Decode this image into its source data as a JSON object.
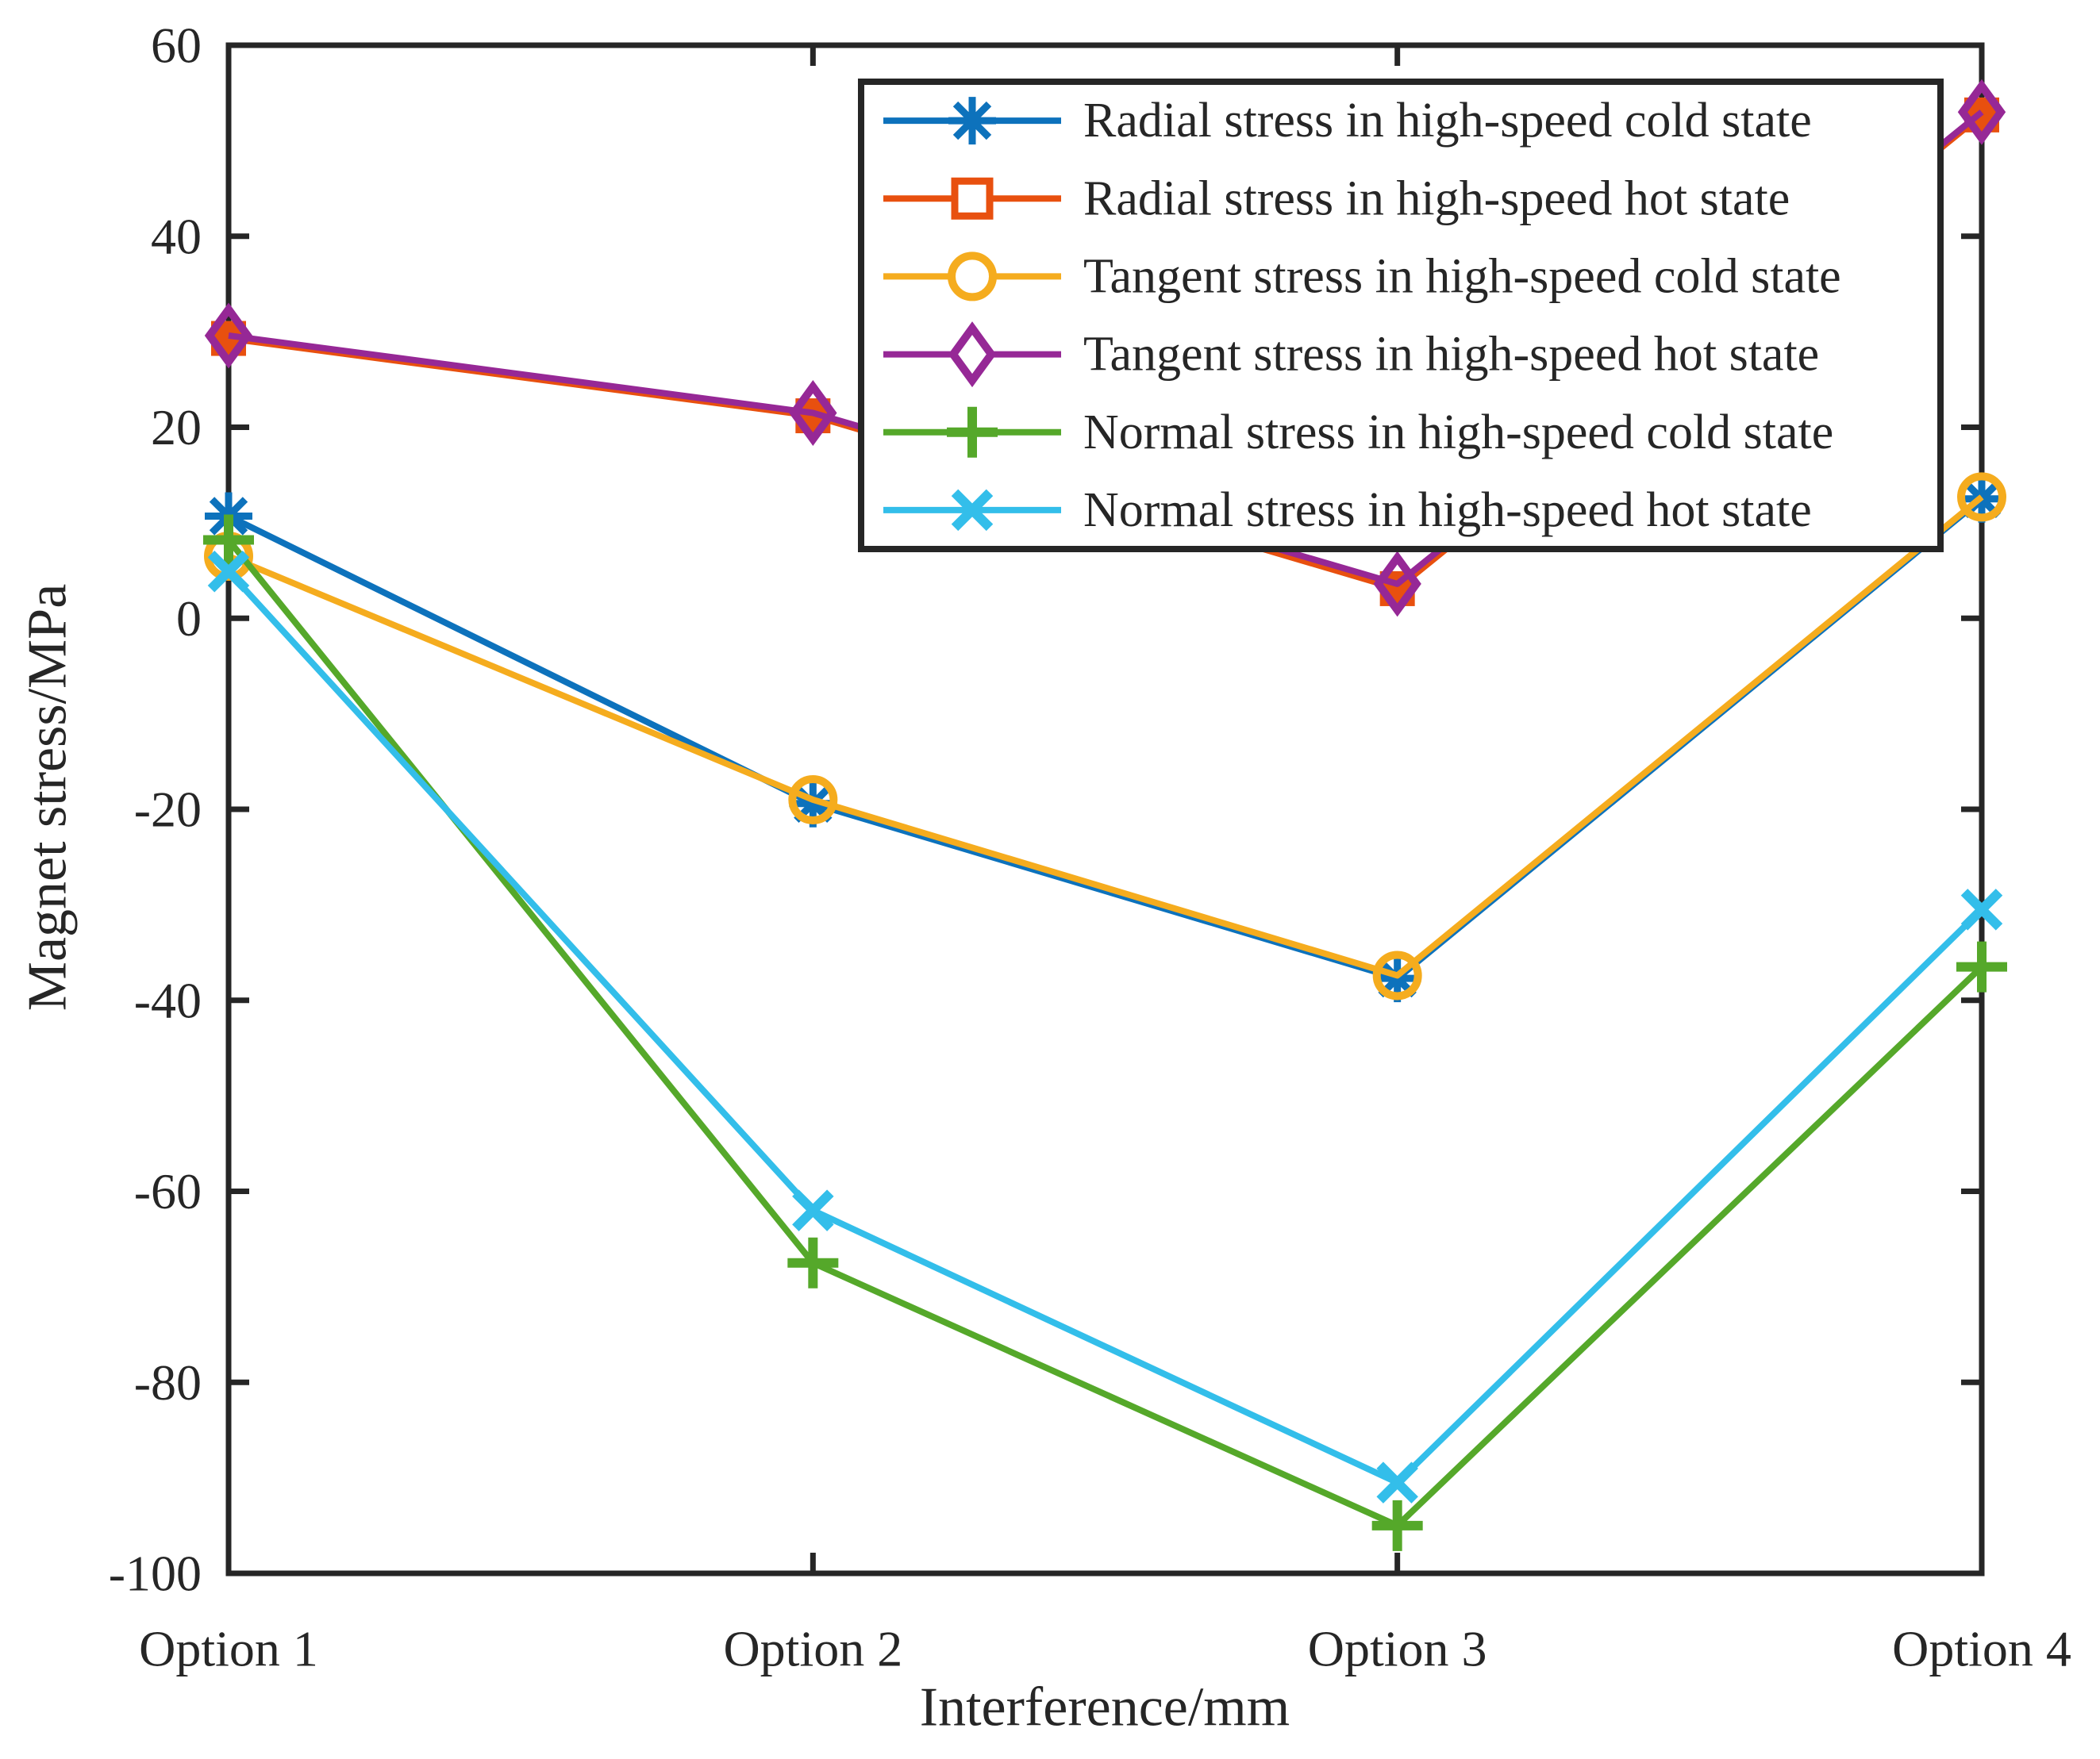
{
  "chart_data": {
    "type": "line",
    "title": "",
    "xlabel": "Interference/mm",
    "ylabel": "Magnet stress/MPa",
    "categories": [
      "Option 1",
      "Option 2",
      "Option 3",
      "Option 4"
    ],
    "yticks": [
      60,
      40,
      20,
      0,
      -20,
      -40,
      -60,
      -80,
      -100
    ],
    "ylim": [
      -100,
      60
    ],
    "grid": false,
    "legend_position": "upper-right-inside",
    "axis_color": "#262626",
    "series": [
      {
        "name": "Radial stress in high-speed cold state",
        "color": "#0D72BC",
        "marker": "asterisk",
        "values": [
          10.7,
          -19.4,
          -37.7,
          12.5
        ]
      },
      {
        "name": "Radial stress in high-speed hot state",
        "color": "#E8500F",
        "marker": "square",
        "values": [
          29.3,
          21.2,
          3.1,
          52.7
        ]
      },
      {
        "name": "Tangent stress in high-speed cold state",
        "color": "#F5AC1E",
        "marker": "circle",
        "values": [
          6.5,
          -19.0,
          -37.4,
          12.7
        ]
      },
      {
        "name": "Tangent stress in high-speed hot state",
        "color": "#962896",
        "marker": "diamond",
        "values": [
          29.6,
          21.5,
          3.6,
          53.0
        ]
      },
      {
        "name": "Normal stress in high-speed cold state",
        "color": "#55A82A",
        "marker": "plus",
        "values": [
          8.2,
          -67.5,
          -95.0,
          -36.5
        ]
      },
      {
        "name": "Normal stress in high-speed hot state",
        "color": "#33BEEA",
        "marker": "x",
        "values": [
          4.9,
          -62.0,
          -90.5,
          -30.5
        ]
      }
    ]
  }
}
